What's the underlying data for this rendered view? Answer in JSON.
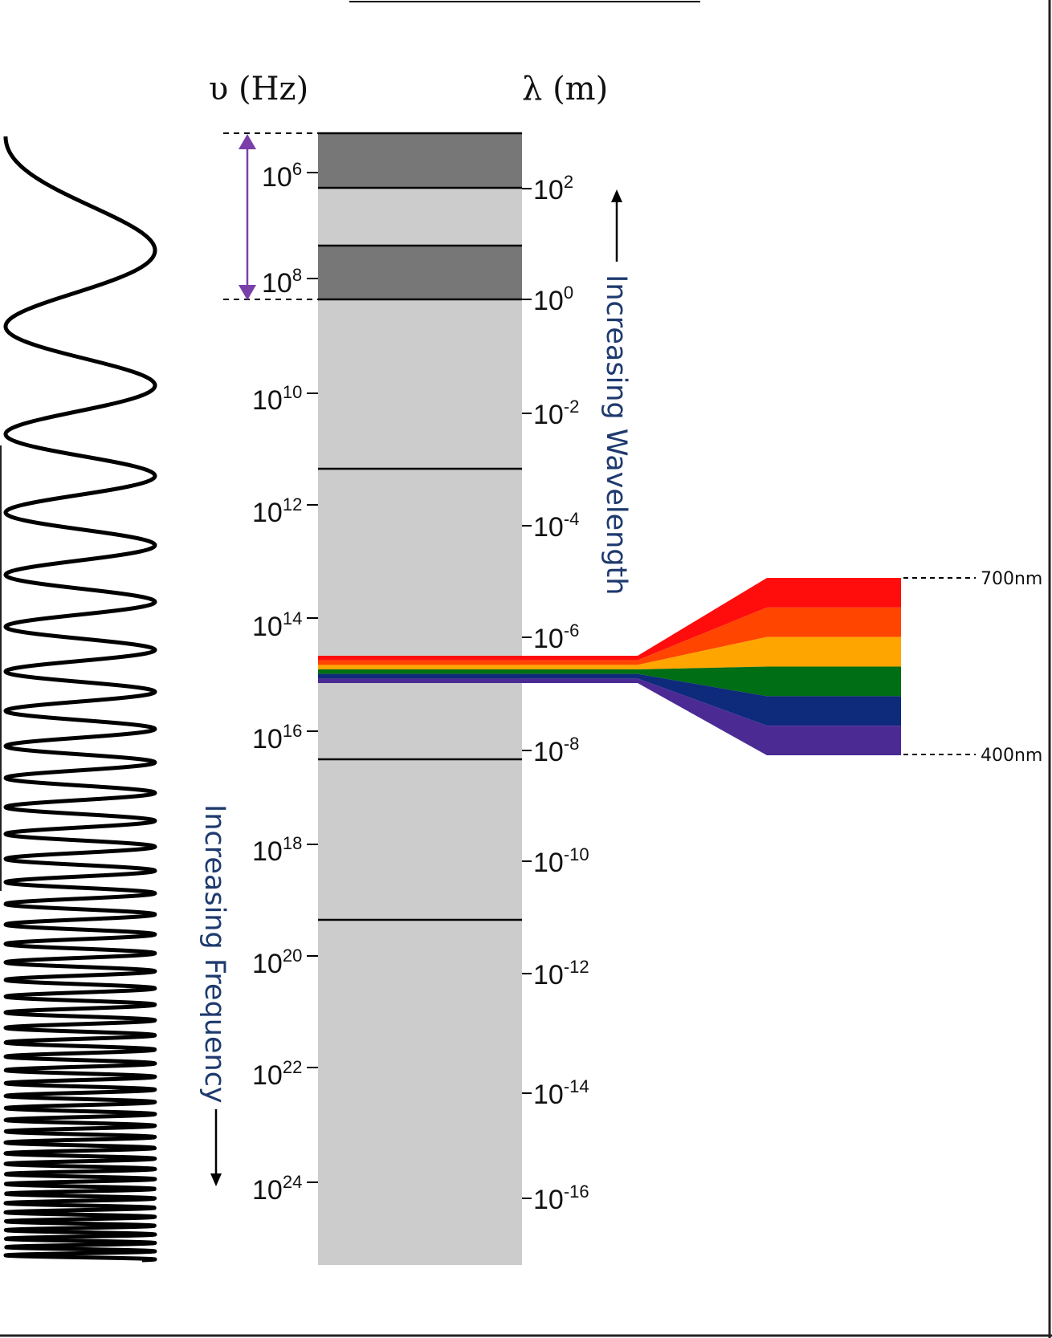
{
  "axes": {
    "frequency_title": "υ (Hz)",
    "wavelength_title": "λ (m)"
  },
  "frequency_ticks": [
    {
      "base": "10",
      "exp": "6"
    },
    {
      "base": "10",
      "exp": "8"
    },
    {
      "base": "10",
      "exp": "10"
    },
    {
      "base": "10",
      "exp": "12"
    },
    {
      "base": "10",
      "exp": "14"
    },
    {
      "base": "10",
      "exp": "16"
    },
    {
      "base": "10",
      "exp": "18"
    },
    {
      "base": "10",
      "exp": "20"
    },
    {
      "base": "10",
      "exp": "22"
    },
    {
      "base": "10",
      "exp": "24"
    }
  ],
  "wavelength_ticks": [
    {
      "base": "10",
      "exp": "2"
    },
    {
      "base": "10",
      "exp": "0"
    },
    {
      "base": "10",
      "exp": "-2"
    },
    {
      "base": "10",
      "exp": "-4"
    },
    {
      "base": "10",
      "exp": "-6"
    },
    {
      "base": "10",
      "exp": "-8"
    },
    {
      "base": "10",
      "exp": "-10"
    },
    {
      "base": "10",
      "exp": "-12"
    },
    {
      "base": "10",
      "exp": "-14"
    },
    {
      "base": "10",
      "exp": "-16"
    }
  ],
  "labels": {
    "increasing_wavelength": "Increasing Wavelength",
    "increasing_frequency": "Increasing Frequency",
    "nm_700": "700nm",
    "nm_400": "400nm"
  },
  "colors": {
    "spectrum_bar": "#cccccc",
    "radio_band": "#777777",
    "range_arrow": "#7a3fa8",
    "label_text": "#1e3a6e",
    "visible_bands": [
      "#ff0d0d",
      "#ff4500",
      "#ffa500",
      "#006e14",
      "#0e2a7a",
      "#4b2a94"
    ]
  }
}
